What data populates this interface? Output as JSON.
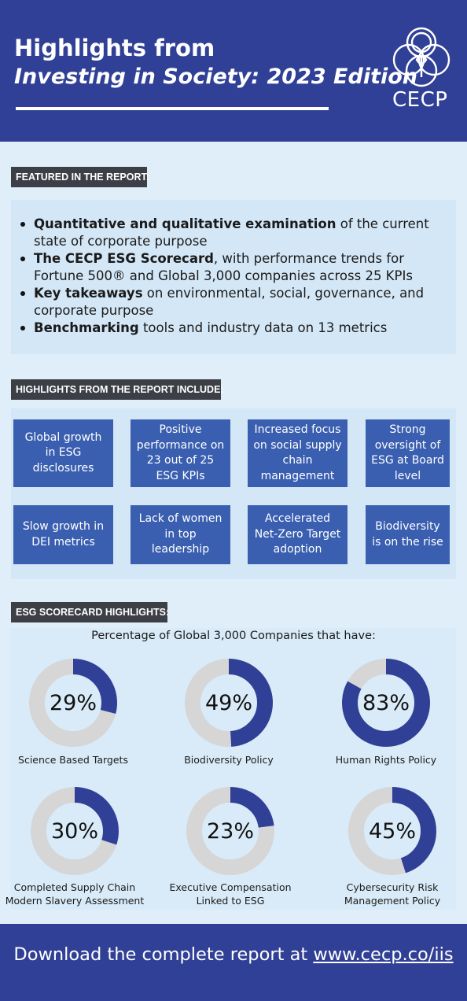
{
  "header": {
    "title_line1": "Highlights from",
    "title_line2": "Investing in Society: 2023 Edition",
    "logo_text": "CECP"
  },
  "featured": {
    "label": "FEATURED IN THE REPORT:",
    "bullets": [
      {
        "bold": "Quantitative and qualitative examination",
        "rest": " of the current state of corporate purpose"
      },
      {
        "bold": "The CECP ESG Scorecard",
        "rest": ", with performance trends for Fortune 500® and Global 3,000 companies across 25 KPIs"
      },
      {
        "bold": "Key takeaways",
        "rest": " on environmental, social, governance, and corporate purpose"
      },
      {
        "bold": "Benchmarking",
        "rest": " tools and industry data on 13 metrics"
      }
    ]
  },
  "highlights": {
    "label": "HIGHLIGHTS FROM THE REPORT INCLUDE:",
    "items": [
      "Global growth in ESG disclosures",
      "Positive performance on 23 out of 25 ESG KPIs",
      "Increased focus on social supply chain management",
      "Strong oversight of ESG at Board level",
      "Slow growth in DEI metrics",
      "Lack of women in top leadership",
      "Accelerated Net-Zero Target adoption",
      "Biodiversity is on the rise"
    ]
  },
  "scorecard": {
    "label": "ESG SCORECARD HIGHLIGHTS:",
    "subtitle": "Percentage of Global 3,000 Companies that have:",
    "fill_color": "#304096",
    "track_color": "#d6d6d6",
    "metrics": [
      {
        "pct_text": "29%",
        "value": 29,
        "label_lines": [
          "Science Based Targets"
        ]
      },
      {
        "pct_text": "49%",
        "value": 49,
        "label_lines": [
          "Biodiversity Policy"
        ]
      },
      {
        "pct_text": "83%",
        "value": 83,
        "label_lines": [
          "Human Rights Policy"
        ]
      },
      {
        "pct_text": "30%",
        "value": 30,
        "label_lines": [
          "Completed Supply Chain",
          "Modern Slavery Assessment"
        ]
      },
      {
        "pct_text": "23%",
        "value": 23,
        "label_lines": [
          "Executive Compensation",
          "Linked to ESG"
        ]
      },
      {
        "pct_text": "45%",
        "value": 45,
        "label_lines": [
          "Cybersecurity Risk",
          "Management Policy"
        ]
      }
    ]
  },
  "footer": {
    "text": "Download the complete report at ",
    "link": "www.cecp.co/iis"
  }
}
